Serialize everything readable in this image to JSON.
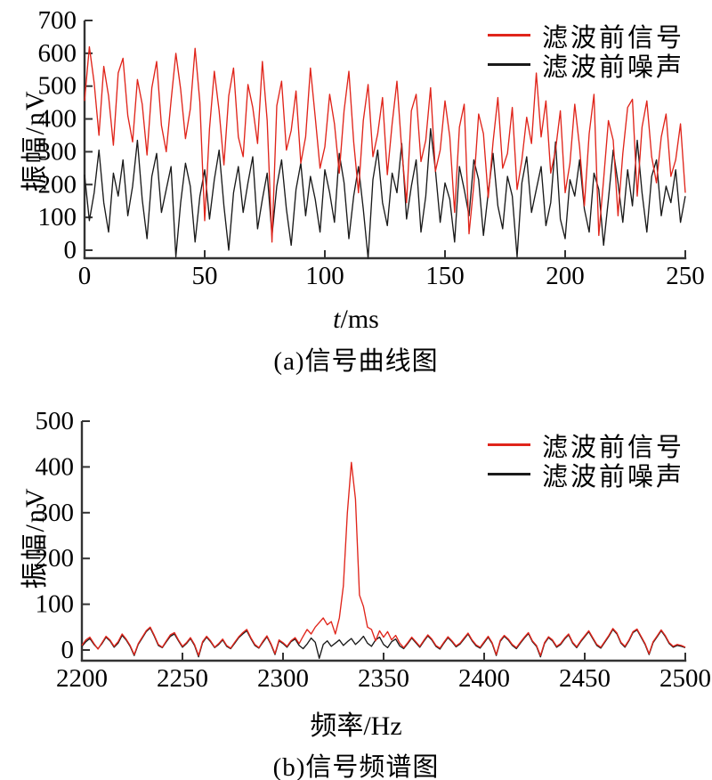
{
  "colors": {
    "signal": "#e0251b",
    "noise": "#1a1a1a",
    "axis": "#333333",
    "text": "#000000",
    "background": "#ffffff"
  },
  "chart_data": [
    {
      "type": "line",
      "panel": "a",
      "caption": "(a)信号曲线图",
      "xlabel": "t/ms",
      "xlabel_parts": {
        "italic": "t",
        "rest": "/ms"
      },
      "ylabel": "振幅/nV",
      "xlim": [
        0,
        250
      ],
      "ylim": [
        0,
        700
      ],
      "xticks": [
        0,
        50,
        100,
        150,
        200,
        250
      ],
      "yticks": [
        0,
        100,
        200,
        300,
        400,
        500,
        600,
        700
      ],
      "grid": false,
      "legend_position": "top-right",
      "x_start": 0,
      "x_step": 2,
      "series": [
        {
          "name": "滤波前信号",
          "role": "signal",
          "color": "#e0251b",
          "values": [
            455,
            620,
            510,
            350,
            560,
            470,
            320,
            540,
            585,
            410,
            330,
            520,
            445,
            290,
            495,
            575,
            380,
            300,
            455,
            600,
            490,
            340,
            430,
            615,
            450,
            90,
            370,
            545,
            425,
            260,
            470,
            555,
            345,
            285,
            505,
            435,
            325,
            575,
            395,
            25,
            440,
            515,
            305,
            365,
            485,
            265,
            345,
            555,
            405,
            250,
            315,
            475,
            385,
            235,
            425,
            545,
            330,
            175,
            395,
            505,
            285,
            355,
            465,
            230,
            385,
            515,
            305,
            145,
            425,
            475,
            270,
            335,
            495,
            240,
            305,
            455,
            345,
            115,
            375,
            445,
            50,
            200,
            415,
            355,
            160,
            330,
            465,
            250,
            295,
            435,
            185,
            275,
            405,
            325,
            540,
            345,
            455,
            235,
            305,
            425,
            175,
            265,
            445,
            315,
            135,
            355,
            475,
            45,
            215,
            395,
            335,
            105,
            295,
            435,
            460,
            165,
            375,
            455,
            285,
            205,
            345,
            415,
            225,
            275,
            385,
            175
          ]
        },
        {
          "name": "滤波前噪声",
          "role": "noise",
          "color": "#1a1a1a",
          "values": [
            230,
            90,
            175,
            305,
            145,
            55,
            235,
            165,
            275,
            105,
            195,
            335,
            155,
            35,
            225,
            295,
            115,
            185,
            255,
            -20,
            145,
            265,
            195,
            25,
            165,
            245,
            95,
            215,
            305,
            135,
            0,
            175,
            255,
            115,
            205,
            285,
            65,
            155,
            235,
            45,
            195,
            275,
            125,
            15,
            185,
            265,
            105,
            225,
            155,
            55,
            245,
            175,
            85,
            295,
            205,
            35,
            165,
            255,
            125,
            -25,
            215,
            305,
            145,
            75,
            235,
            175,
            325,
            95,
            195,
            275,
            55,
            165,
            370,
            245,
            85,
            205,
            155,
            25,
            255,
            185,
            105,
            275,
            215,
            45,
            175,
            295,
            135,
            65,
            225,
            165,
            -20,
            205,
            285,
            115,
            185,
            255,
            75,
            145,
            330,
            95,
            35,
            215,
            165,
            275,
            125,
            55,
            235,
            185,
            15,
            155,
            305,
            205,
            85,
            245,
            135,
            335,
            175,
            55,
            225,
            275,
            105,
            195,
            145,
            245,
            85,
            165
          ]
        }
      ]
    },
    {
      "type": "line",
      "panel": "b",
      "caption": "(b)信号频谱图",
      "xlabel": "频率/Hz",
      "xlabel_parts": {
        "italic": "",
        "rest": "频率/Hz"
      },
      "ylabel": "振幅/nV",
      "xlim": [
        2200,
        2500
      ],
      "ylim": [
        0,
        500
      ],
      "xticks": [
        2200,
        2250,
        2300,
        2350,
        2400,
        2450,
        2500
      ],
      "yticks": [
        0,
        100,
        200,
        300,
        400,
        500
      ],
      "grid": false,
      "legend_position": "top-right",
      "x_start": 2200,
      "x_step": 2,
      "peak": {
        "x": 2334,
        "y": 410
      },
      "series": [
        {
          "name": "滤波前信号",
          "role": "signal",
          "color": "#e0251b",
          "values": [
            10,
            22,
            28,
            14,
            2,
            16,
            30,
            22,
            8,
            18,
            35,
            24,
            10,
            -10,
            14,
            28,
            42,
            50,
            32,
            12,
            6,
            20,
            33,
            38,
            22,
            8,
            16,
            27,
            12,
            -12,
            18,
            30,
            20,
            6,
            14,
            24,
            10,
            4,
            17,
            29,
            38,
            45,
            27,
            12,
            5,
            19,
            31,
            14,
            -8,
            22,
            16,
            8,
            20,
            27,
            14,
            30,
            45,
            35,
            50,
            60,
            70,
            55,
            62,
            35,
            70,
            140,
            300,
            410,
            330,
            120,
            95,
            50,
            45,
            20,
            42,
            28,
            40,
            22,
            32,
            15,
            5,
            16,
            28,
            18,
            8,
            21,
            33,
            24,
            10,
            4,
            17,
            29,
            20,
            9,
            15,
            26,
            37,
            22,
            11,
            6,
            18,
            30,
            16,
            -10,
            21,
            32,
            24,
            12,
            5,
            17,
            28,
            38,
            20,
            10,
            -12,
            16,
            29,
            22,
            8,
            14,
            26,
            35,
            17,
            7,
            20,
            31,
            42,
            27,
            12,
            6,
            19,
            32,
            47,
            37,
            17,
            8,
            22,
            40,
            46,
            30,
            14,
            -8,
            18,
            31,
            44,
            32,
            16,
            8,
            12,
            10,
            6
          ]
        },
        {
          "name": "滤波前噪声",
          "role": "noise",
          "color": "#1a1a1a",
          "values": [
            8,
            18,
            25,
            12,
            3,
            14,
            28,
            20,
            6,
            15,
            32,
            22,
            8,
            -12,
            12,
            26,
            40,
            48,
            30,
            10,
            5,
            18,
            30,
            35,
            20,
            6,
            14,
            25,
            10,
            -15,
            16,
            28,
            18,
            5,
            12,
            22,
            8,
            3,
            15,
            27,
            35,
            42,
            25,
            10,
            4,
            17,
            29,
            12,
            -10,
            20,
            14,
            6,
            18,
            24,
            10,
            3,
            13,
            26,
            17,
            -18,
            12,
            20,
            8,
            15,
            22,
            10,
            18,
            25,
            12,
            20,
            30,
            15,
            8,
            22,
            28,
            12,
            5,
            18,
            24,
            9,
            3,
            14,
            26,
            16,
            6,
            19,
            31,
            22,
            8,
            2,
            15,
            27,
            18,
            7,
            13,
            24,
            35,
            20,
            9,
            4,
            16,
            28,
            14,
            -12,
            19,
            30,
            22,
            10,
            3,
            15,
            26,
            36,
            18,
            8,
            -15,
            14,
            27,
            20,
            6,
            12,
            24,
            33,
            15,
            5,
            18,
            29,
            40,
            25,
            10,
            4,
            17,
            30,
            45,
            35,
            15,
            6,
            20,
            38,
            44,
            28,
            12,
            -10,
            16,
            29,
            42,
            30,
            14,
            6,
            10,
            8,
            5
          ]
        }
      ]
    }
  ]
}
